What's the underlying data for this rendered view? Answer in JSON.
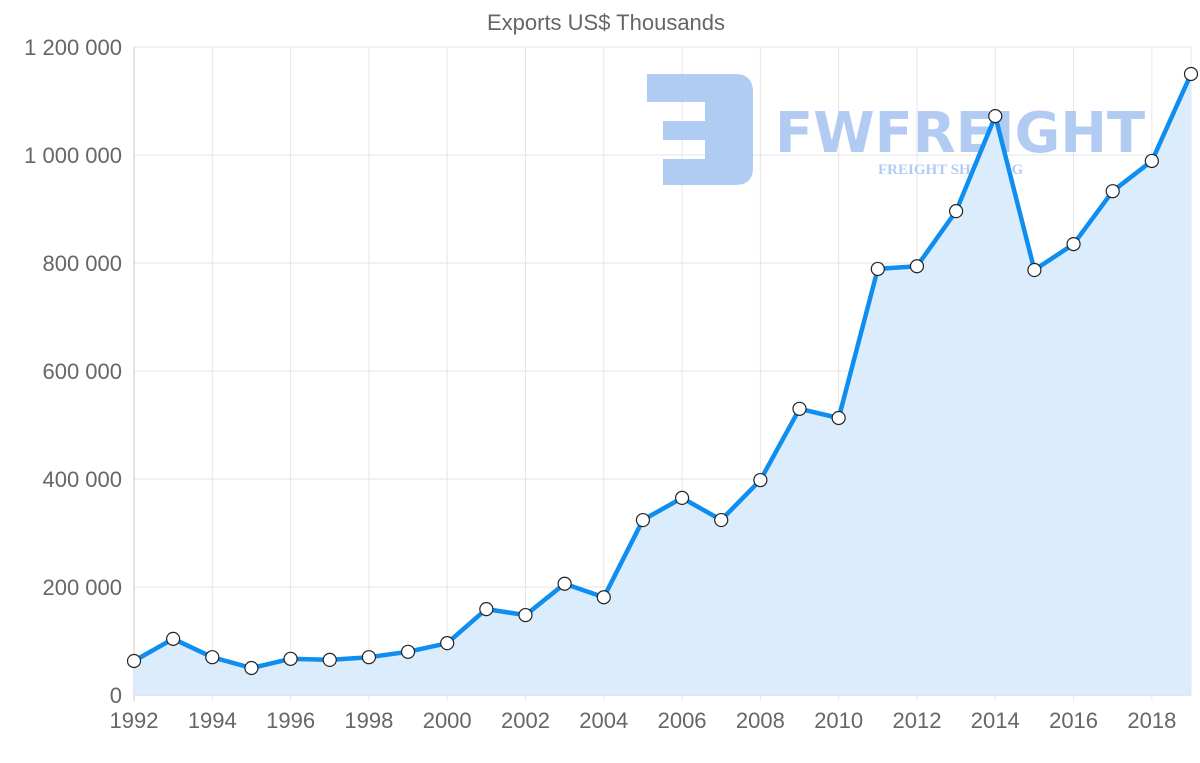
{
  "chart_data": {
    "type": "line",
    "title": "Exports US$ Thousands",
    "xlabel": "",
    "ylabel": "",
    "x": [
      1992,
      1993,
      1994,
      1995,
      1996,
      1997,
      1998,
      1999,
      2000,
      2001,
      2002,
      2003,
      2004,
      2005,
      2006,
      2007,
      2008,
      2009,
      2010,
      2011,
      2012,
      2013,
      2014,
      2015,
      2016,
      2017,
      2018,
      2019
    ],
    "series": [
      {
        "name": "Exports US$ Thousands",
        "values": [
          63000,
          104000,
          70000,
          50000,
          67000,
          65000,
          70000,
          80000,
          96000,
          159000,
          148000,
          206000,
          181000,
          324000,
          365000,
          324000,
          398000,
          530000,
          513000,
          789000,
          794000,
          896000,
          1072000,
          787000,
          835000,
          933000,
          989000,
          1150000
        ]
      }
    ],
    "xlim": [
      1992,
      2019
    ],
    "ylim": [
      0,
      1200000
    ],
    "yticks": [
      "0",
      "200 000",
      "400 000",
      "600 000",
      "800 000",
      "1 000 000",
      "1 200 000"
    ],
    "xticks": [
      "1992",
      "1994",
      "1996",
      "1998",
      "2000",
      "2002",
      "2004",
      "2006",
      "2008",
      "2010",
      "2012",
      "2014",
      "2016",
      "2018"
    ],
    "grid": true,
    "area_fill": true,
    "colors": {
      "line": "#0f8ef0",
      "fill": "#d9ecfd",
      "watermark": "#a9c6f2"
    }
  },
  "watermark": {
    "brand": "FWFREIGHT",
    "tagline": "FREIGHT SHIPPING"
  }
}
